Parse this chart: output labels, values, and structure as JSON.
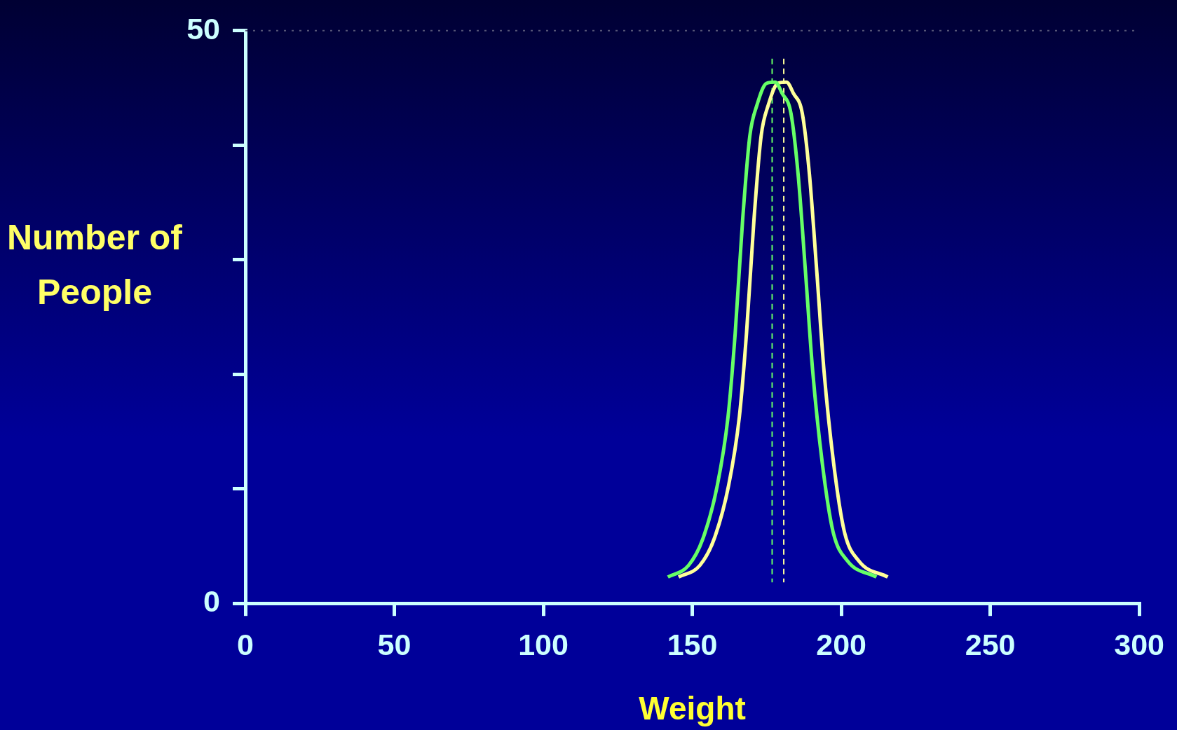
{
  "chart_data": {
    "type": "line",
    "xlabel": "Weight",
    "ylabel": "Number of People",
    "xlim": [
      0,
      300
    ],
    "xticks": [
      0,
      50,
      100,
      150,
      200,
      250,
      300
    ],
    "ylim": [
      0,
      50
    ],
    "yticks": [
      0,
      {
        "value": 10,
        "label": null
      },
      {
        "value": 20,
        "label": null
      },
      {
        "value": 30,
        "label": null
      },
      {
        "value": 40,
        "label": null
      },
      50
    ],
    "grid": false,
    "legend": false,
    "marker": "none",
    "line_style": "solid",
    "series": [
      {
        "color": "#66ff66",
        "x": [
          141.8,
          148.7,
          153.5,
          158.4,
          162,
          164.4,
          166.9,
          169.3,
          171.7,
          174.9,
          177.8,
          180.2,
          183.1,
          185.5,
          188,
          190.4,
          193.6,
          197.2,
          202.1,
          211.8
        ],
        "values": [
          2.3,
          3.3,
          5.6,
          10.3,
          16.3,
          23.6,
          33.5,
          40.8,
          43.5,
          45.4,
          45.5,
          44.5,
          42.8,
          37.5,
          28.9,
          20.3,
          12.3,
          6.3,
          3.7,
          2.3
        ]
      },
      {
        "color": "#ffff99",
        "x": [
          145.4,
          152.5,
          157.3,
          162.2,
          165.8,
          168.2,
          170.7,
          173.1,
          175.5,
          178.7,
          181.6,
          184,
          186.9,
          189.3,
          191.8,
          194.2,
          197.4,
          201,
          205.9,
          215.6
        ],
        "values": [
          2.3,
          3.3,
          5.6,
          10.3,
          16.3,
          23.6,
          33.5,
          40.8,
          43.5,
          45.4,
          45.5,
          44.5,
          42.8,
          37.5,
          28.9,
          20.3,
          12.3,
          6.3,
          3.7,
          2.3
        ]
      }
    ],
    "ref_lines": [
      {
        "axis": "x",
        "value": 176.8,
        "color": "#66ff66",
        "line_style": "dashed"
      },
      {
        "axis": "x",
        "value": 180.7,
        "color": "#ffff99",
        "line_style": "dashed"
      },
      {
        "axis": "y",
        "value": 50,
        "color": "#555577",
        "line_style": "dotted"
      }
    ]
  }
}
